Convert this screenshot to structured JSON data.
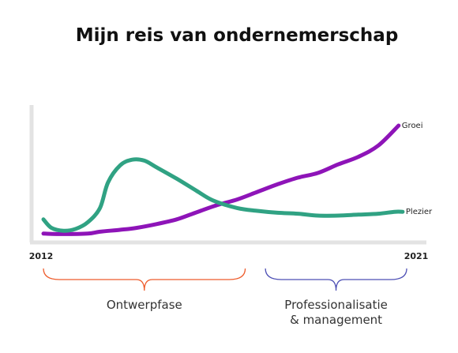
{
  "chart_data": {
    "type": "line",
    "title": "Mijn reis van ondernemerschap",
    "xlim": [
      2012,
      2021
    ],
    "ylim": [
      0,
      100
    ],
    "x_tick_labels": [
      "2012",
      "2021"
    ],
    "grid": false,
    "series": [
      {
        "name": "Groei",
        "color": "#8e14b8",
        "points": [
          [
            2012.0,
            1
          ],
          [
            2012.5,
            0.5
          ],
          [
            2013.1,
            1
          ],
          [
            2013.4,
            3
          ],
          [
            2013.9,
            5
          ],
          [
            2014.3,
            7
          ],
          [
            2014.8,
            11
          ],
          [
            2015.3,
            16
          ],
          [
            2015.7,
            22
          ],
          [
            2016.3,
            31
          ],
          [
            2016.8,
            37
          ],
          [
            2017.3,
            45
          ],
          [
            2017.8,
            53
          ],
          [
            2018.3,
            60
          ],
          [
            2018.8,
            65
          ],
          [
            2019.3,
            74
          ],
          [
            2019.8,
            82
          ],
          [
            2020.3,
            94
          ],
          [
            2020.8,
            115
          ]
        ]
      },
      {
        "name": "Plezier",
        "color": "#30a283",
        "points": [
          [
            2012.0,
            16
          ],
          [
            2012.2,
            7
          ],
          [
            2012.5,
            4
          ],
          [
            2012.8,
            6
          ],
          [
            2013.1,
            13
          ],
          [
            2013.4,
            28
          ],
          [
            2013.6,
            55
          ],
          [
            2013.9,
            73
          ],
          [
            2014.2,
            79
          ],
          [
            2014.5,
            78
          ],
          [
            2014.8,
            71
          ],
          [
            2015.3,
            59
          ],
          [
            2015.8,
            46
          ],
          [
            2016.2,
            36
          ],
          [
            2016.8,
            28
          ],
          [
            2017.3,
            25
          ],
          [
            2017.8,
            23
          ],
          [
            2018.3,
            22
          ],
          [
            2018.8,
            20
          ],
          [
            2019.3,
            20
          ],
          [
            2019.8,
            21
          ],
          [
            2020.3,
            22
          ],
          [
            2020.7,
            24
          ],
          [
            2020.9,
            24
          ]
        ]
      }
    ],
    "annotations": [
      {
        "label_lines": [
          "Ontwerpfase"
        ],
        "from": 2012.0,
        "to": 2017.0,
        "color": "#ee5c2c"
      },
      {
        "label_lines": [
          "Professionalisatie",
          "& management"
        ],
        "from": 2017.5,
        "to": 2021.0,
        "color": "#4d4fb5"
      }
    ]
  }
}
